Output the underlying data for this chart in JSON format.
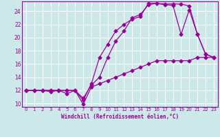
{
  "title": "",
  "xlabel": "Windchill (Refroidissement éolien,°C)",
  "background_color": "#cce8e8",
  "grid_color": "#ffffff",
  "line_color": "#990099",
  "xlim": [
    -0.5,
    23.5
  ],
  "ylim": [
    9.5,
    25.5
  ],
  "xticks": [
    0,
    1,
    2,
    3,
    4,
    5,
    6,
    7,
    8,
    9,
    10,
    11,
    12,
    13,
    14,
    15,
    16,
    17,
    18,
    19,
    20,
    21,
    22,
    23
  ],
  "yticks": [
    10,
    12,
    14,
    16,
    18,
    20,
    22,
    24
  ],
  "line1_x": [
    0,
    1,
    2,
    3,
    4,
    5,
    6,
    7,
    8,
    9,
    10,
    11,
    12,
    13,
    14,
    15,
    16,
    17,
    18,
    19,
    20,
    21,
    22,
    23
  ],
  "line1_y": [
    12,
    12,
    12,
    12,
    12,
    12,
    12,
    9.9,
    12.5,
    13,
    13.5,
    14,
    14.5,
    15,
    15.5,
    16,
    16.5,
    16.5,
    16.5,
    16.5,
    16.5,
    17,
    17,
    17
  ],
  "line2_x": [
    0,
    1,
    2,
    3,
    4,
    5,
    6,
    7,
    8,
    9,
    10,
    11,
    12,
    13,
    14,
    15,
    16,
    17,
    18,
    19,
    20,
    21,
    22,
    23
  ],
  "line2_y": [
    12,
    12,
    12,
    11.8,
    12,
    11.5,
    12,
    10.5,
    13,
    17,
    19,
    21,
    22,
    22.8,
    23.2,
    25.2,
    25.2,
    25,
    24.9,
    20.5,
    24.2,
    20.5,
    17.5,
    17
  ],
  "line3_x": [
    0,
    1,
    2,
    3,
    4,
    5,
    6,
    7,
    8,
    9,
    10,
    11,
    12,
    13,
    14,
    15,
    16,
    17,
    18,
    19,
    20,
    21,
    22,
    23
  ],
  "line3_y": [
    12,
    12,
    12,
    12,
    12,
    12,
    12,
    10.8,
    12.8,
    14,
    17,
    19.5,
    21,
    23,
    23.5,
    25,
    25.2,
    25.1,
    25.1,
    25.1,
    24.8,
    20.5,
    17.5,
    17
  ]
}
